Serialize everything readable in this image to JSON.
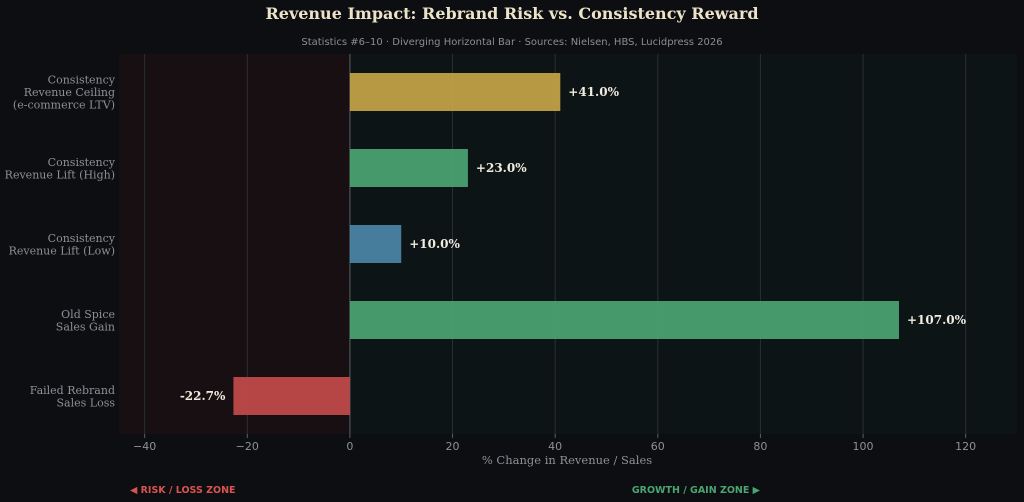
{
  "chart_data": {
    "type": "bar",
    "orientation": "horizontal",
    "title": "Revenue Impact: Rebrand Risk vs. Consistency Reward",
    "subtitle": "Statistics #6–10 · Diverging Horizontal Bar · Sources: Nielsen, HBS, Lucidpress 2026",
    "xlabel": "% Change in Revenue / Sales",
    "ylabel": "",
    "xlim": [
      -45,
      130
    ],
    "xticks": [
      -40,
      -20,
      0,
      20,
      40,
      60,
      80,
      100,
      120
    ],
    "xtick_labels": [
      "−40",
      "−20",
      "0",
      "20",
      "40",
      "60",
      "80",
      "100",
      "120"
    ],
    "grid": "vertical",
    "categories": [
      [
        "Consistency",
        "Revenue Ceiling",
        "(e-commerce LTV)"
      ],
      [
        "Consistency",
        "Revenue Lift (High)"
      ],
      [
        "Consistency",
        "Revenue Lift (Low)"
      ],
      [
        "Old Spice",
        "Sales Gain"
      ],
      [
        "Failed Rebrand",
        "Sales Loss"
      ]
    ],
    "values": [
      41.0,
      23.0,
      10.0,
      107.0,
      -22.7
    ],
    "value_labels": [
      "+41.0%",
      "+23.0%",
      "+10.0%",
      "+107.0%",
      "-22.7%"
    ],
    "colors": [
      "#c6a548",
      "#4aa572",
      "#4b87a8",
      "#4aa572",
      "#c44a4a"
    ]
  },
  "zones": {
    "risk_label": "◀ RISK / LOSS ZONE",
    "growth_label": "GROWTH / GAIN ZONE ▶",
    "risk_color": "#d9534f",
    "growth_color": "#4aa572"
  },
  "colors": {
    "background": "#0d0e11",
    "plot_background": "#0d1416",
    "risk_zone_background": "#180f12",
    "grid": "#2a2f33",
    "zero_line": "#4e5358"
  }
}
